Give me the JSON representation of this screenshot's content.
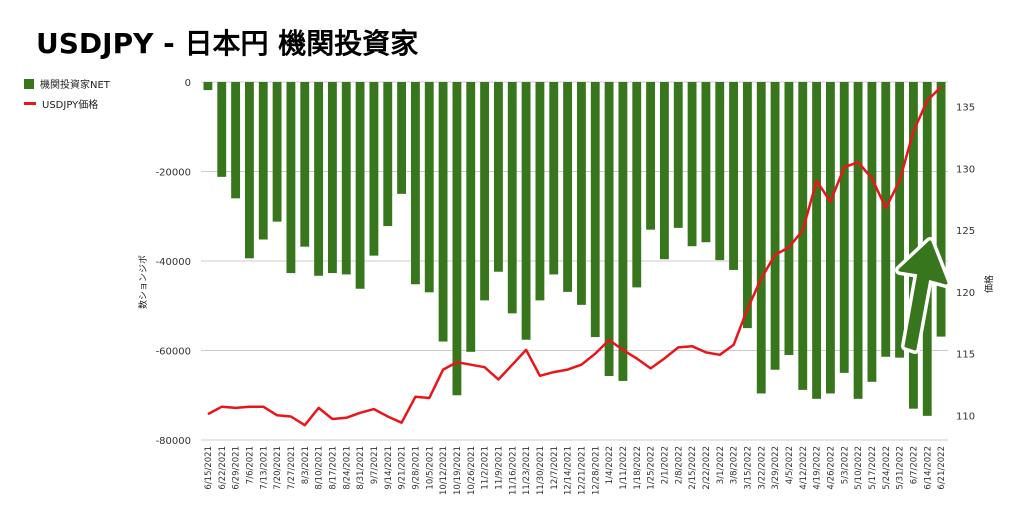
{
  "chart_data": {
    "type": "bar",
    "title": "USDJPY - 日本円 機関投資家",
    "ylabel": "数ションジポ",
    "y2label": "価格",
    "ylim": [
      -80000,
      0
    ],
    "y2lim": [
      108,
      137
    ],
    "yticks": [
      0,
      -20000,
      -40000,
      -60000,
      -80000
    ],
    "y2ticks": [
      110,
      115,
      120,
      125,
      130,
      135
    ],
    "legend_position": "left",
    "colors": {
      "bars": "#38761d",
      "line": "#e8161a",
      "arrow": "#38761d"
    },
    "categories": [
      "6/15/2021",
      "6/22/2021",
      "6/29/2021",
      "7/6/2021",
      "7/13/2021",
      "7/20/2021",
      "7/27/2021",
      "8/3/2021",
      "8/10/2021",
      "8/17/2021",
      "8/24/2021",
      "8/31/2021",
      "9/7/2021",
      "9/14/2021",
      "9/21/2021",
      "9/28/2021",
      "10/5/2021",
      "10/12/2021",
      "10/19/2021",
      "10/26/2021",
      "11/2/2021",
      "11/9/2021",
      "11/16/2021",
      "11/23/2021",
      "11/30/2021",
      "12/7/2021",
      "12/14/2021",
      "12/21/2021",
      "12/28/2021",
      "1/4/2022",
      "1/11/2022",
      "1/18/2022",
      "1/25/2022",
      "2/1/2022",
      "2/8/2022",
      "2/15/2022",
      "2/22/2022",
      "3/1/2022",
      "3/8/2022",
      "3/15/2022",
      "3/22/2022",
      "3/29/2022",
      "4/5/2022",
      "4/12/2022",
      "4/19/2022",
      "4/26/2022",
      "5/3/2022",
      "5/10/2022",
      "5/17/2022",
      "5/24/2022",
      "5/31/2022",
      "6/7/2022",
      "6/14/2022",
      "6/21/2022"
    ],
    "series": [
      {
        "name": "機関投資家NET",
        "type": "bar",
        "axis": "left",
        "values": [
          -1800,
          -21200,
          -26000,
          -39400,
          -35200,
          -31200,
          -42700,
          -36800,
          -43300,
          -42700,
          -43000,
          -46200,
          -38800,
          -32200,
          -25000,
          -45200,
          -47000,
          -58000,
          -70000,
          -60300,
          -48800,
          -42400,
          -51700,
          -57600,
          -48800,
          -43000,
          -46900,
          -49800,
          -57000,
          -65700,
          -66800,
          -45900,
          -33000,
          -39600,
          -32600,
          -36700,
          -35800,
          -39800,
          -42000,
          -55000,
          -69600,
          -64300,
          -61000,
          -68800,
          -70800,
          -69600,
          -65000,
          -70800,
          -67000,
          -61400,
          -61600,
          -73000,
          -74600,
          -56900
        ]
      },
      {
        "name": "USDJPY価格",
        "type": "line",
        "axis": "right",
        "values": [
          110.1,
          110.7,
          110.6,
          110.7,
          110.7,
          110.0,
          109.9,
          109.2,
          110.6,
          109.7,
          109.8,
          110.2,
          110.5,
          109.9,
          109.4,
          111.5,
          111.4,
          113.7,
          114.3,
          114.1,
          113.9,
          112.9,
          114.1,
          115.3,
          113.2,
          113.5,
          113.7,
          114.1,
          115.0,
          116.1,
          115.3,
          114.6,
          113.8,
          114.6,
          115.5,
          115.6,
          115.1,
          114.9,
          115.7,
          118.6,
          121.1,
          123.0,
          123.6,
          125.0,
          129.0,
          127.3,
          130.1,
          130.5,
          129.2,
          126.8,
          129.0,
          133.0,
          135.5,
          136.6
        ]
      }
    ]
  },
  "annotation": {
    "type": "arrow",
    "color": "#38761d",
    "direction": "up"
  }
}
